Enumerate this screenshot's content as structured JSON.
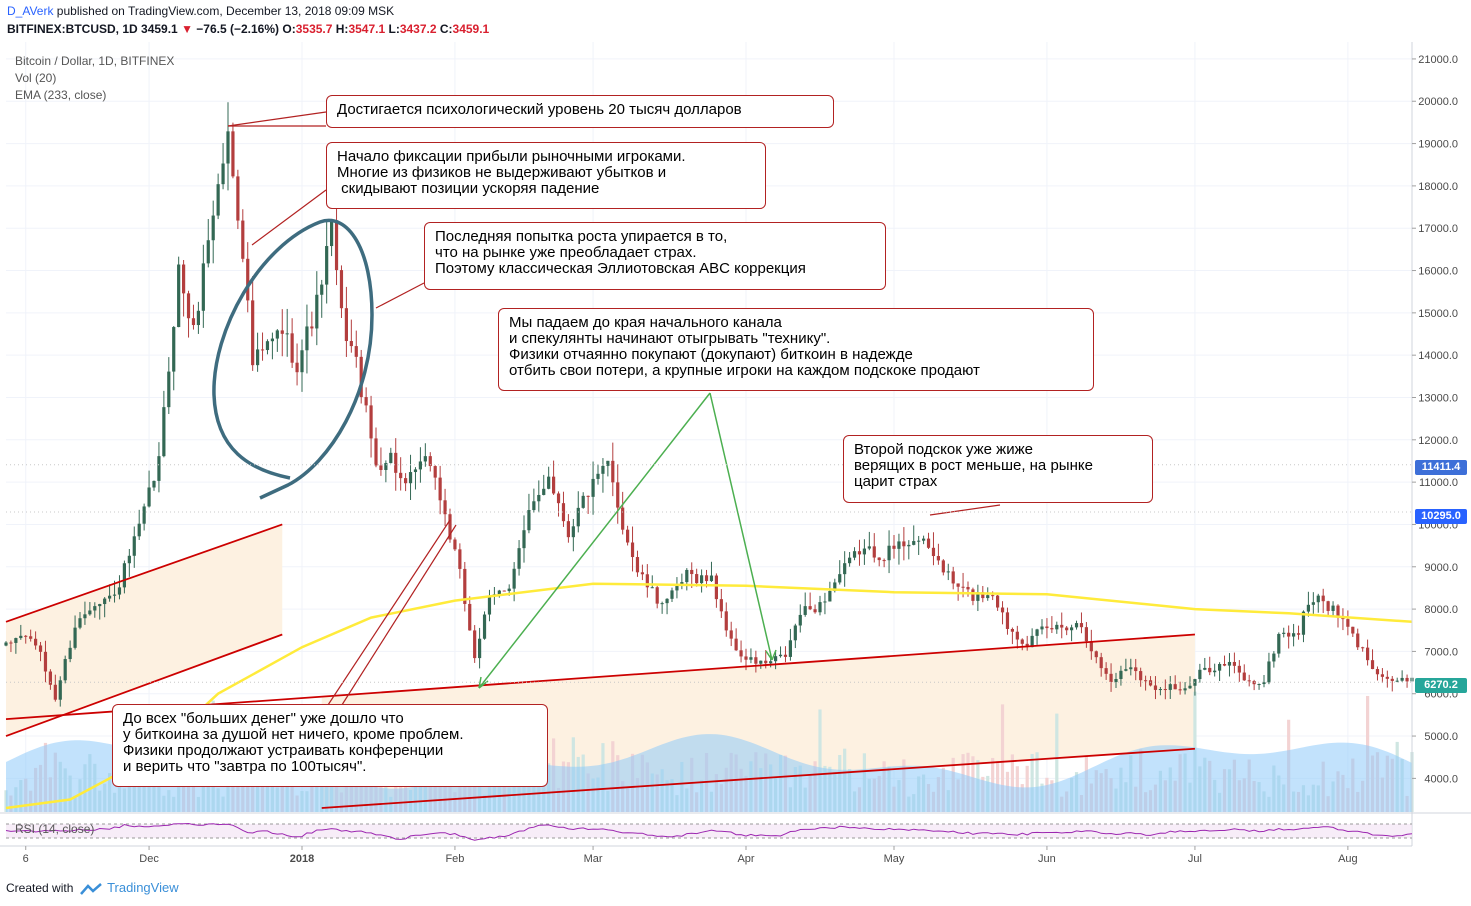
{
  "header": {
    "user": "D_AVerk",
    "published": " published on TradingView.com, December 13, 2018 09:09 MSK",
    "symbol": "BITFINEX:BTCUSD, 1D",
    "last": "3459.1",
    "change": "−76.5 (−2.16%)",
    "o_label": "O:",
    "o": "3535.7",
    "h_label": "H:",
    "h": "3547.1",
    "l_label": "L:",
    "l": "3437.2",
    "c_label": "C:",
    "c": "3459.1"
  },
  "legend": {
    "series": "Bitcoin / Dollar, 1D, BITFINEX",
    "volume": "Vol (20)",
    "ema": "EMA (233, close)",
    "rsi": "RSI (14, close)"
  },
  "annotations": [
    "Достигается психологический уровень 20 тысяч долларов",
    "Начало фиксации прибыли рыночными игроками.\nМногие из физиков не выдерживают убытков и\n скидывают позиции ускоряя падение",
    "Последняя попытка роста упирается в то,\nчто на рынке уже преобладает страх.\nПоэтому классическая Эллиотовская ABC коррекция",
    "Мы падаем до края начального канала\nи спекулянты начинают отыгрывать \"технику\".\nФизики отчаянно покупают (докупают) биткоин в надежде\nотбить свои потери, а крупные игроки на каждом подскоке продают",
    "Второй подскок уже жиже\nверящих в рост меньше, на рынке\nцарит страх",
    "До всех \"больших денег\" уже дошло что\nу биткоина за душой нет ничего, кроме проблем.\nФизики продолжают устраивать конференции\nи верить что \"завтра по 100тысяч\"."
  ],
  "price_tags": [
    "11411.4",
    "10295.0",
    "6270.2"
  ],
  "footer": {
    "created": "Created with",
    "brand": "TradingView"
  },
  "colors": {
    "up": "#336854",
    "down": "#b33e3e",
    "ema": "#ffeb3b",
    "channel": "#cc0000",
    "volume": "#90caf9",
    "rsi": "#9c27b0",
    "annotation_border": "#b22222"
  },
  "chart_data": {
    "type": "candlestick",
    "title": "Bitcoin / Dollar, 1D, BITFINEX",
    "y_axis": {
      "ticks": [
        4000,
        5000,
        6000,
        7000,
        8000,
        9000,
        10000,
        11000,
        12000,
        13000,
        14000,
        15000,
        16000,
        17000,
        18000,
        19000,
        20000,
        21000
      ],
      "ylim": [
        3300,
        21400
      ]
    },
    "x_axis": {
      "ticks": [
        "6",
        "Dec",
        "2018",
        "Feb",
        "Mar",
        "Apr",
        "May",
        "Jun",
        "Jul",
        "Aug"
      ],
      "tick_dates": [
        "2017-11-06",
        "2017-12-01",
        "2018-01-01",
        "2018-02-01",
        "2018-03-01",
        "2018-04-01",
        "2018-05-01",
        "2018-06-01",
        "2018-07-01",
        "2018-08-01"
      ],
      "xlim": [
        "2017-11-02",
        "2018-08-14"
      ]
    },
    "anchors": [
      [
        "2017-11-02",
        7100
      ],
      [
        "2017-11-05",
        7400
      ],
      [
        "2017-11-08",
        7200
      ],
      [
        "2017-11-12",
        5900
      ],
      [
        "2017-11-16",
        7600
      ],
      [
        "2017-11-20",
        8200
      ],
      [
        "2017-11-24",
        8300
      ],
      [
        "2017-11-29",
        9900
      ],
      [
        "2017-12-03",
        11500
      ],
      [
        "2017-12-07",
        16000
      ],
      [
        "2017-12-10",
        14500
      ],
      [
        "2017-12-13",
        16800
      ],
      [
        "2017-12-17",
        19200
      ],
      [
        "2017-12-20",
        16500
      ],
      [
        "2017-12-22",
        13800
      ],
      [
        "2017-12-25",
        14200
      ],
      [
        "2017-12-28",
        14600
      ],
      [
        "2017-12-31",
        13800
      ],
      [
        "2018-01-04",
        15200
      ],
      [
        "2018-01-07",
        17000
      ],
      [
        "2018-01-09",
        14900
      ],
      [
        "2018-01-12",
        13800
      ],
      [
        "2018-01-16",
        11400
      ],
      [
        "2018-01-19",
        11600
      ],
      [
        "2018-01-22",
        10800
      ],
      [
        "2018-01-24",
        11300
      ],
      [
        "2018-01-27",
        11500
      ],
      [
        "2018-01-30",
        10200
      ],
      [
        "2018-02-02",
        8800
      ],
      [
        "2018-02-05",
        6900
      ],
      [
        "2018-02-08",
        8200
      ],
      [
        "2018-02-12",
        8600
      ],
      [
        "2018-02-16",
        10200
      ],
      [
        "2018-02-20",
        11200
      ],
      [
        "2018-02-24",
        9800
      ],
      [
        "2018-02-27",
        10600
      ],
      [
        "2018-03-04",
        11400
      ],
      [
        "2018-03-07",
        10000
      ],
      [
        "2018-03-10",
        8900
      ],
      [
        "2018-03-14",
        8200
      ],
      [
        "2018-03-17",
        8300
      ],
      [
        "2018-03-20",
        8800
      ],
      [
        "2018-03-25",
        8700
      ],
      [
        "2018-03-29",
        7200
      ],
      [
        "2018-04-01",
        6800
      ],
      [
        "2018-04-05",
        6700
      ],
      [
        "2018-04-09",
        6900
      ],
      [
        "2018-04-12",
        7900
      ],
      [
        "2018-04-16",
        8100
      ],
      [
        "2018-04-20",
        8800
      ],
      [
        "2018-04-24",
        9400
      ],
      [
        "2018-04-29",
        9300
      ],
      [
        "2018-05-05",
        9700
      ],
      [
        "2018-05-09",
        9300
      ],
      [
        "2018-05-13",
        8600
      ],
      [
        "2018-05-17",
        8300
      ],
      [
        "2018-05-21",
        8400
      ],
      [
        "2018-05-24",
        7600
      ],
      [
        "2018-05-28",
        7200
      ],
      [
        "2018-05-31",
        7500
      ],
      [
        "2018-06-04",
        7600
      ],
      [
        "2018-06-08",
        7650
      ],
      [
        "2018-06-11",
        6800
      ],
      [
        "2018-06-14",
        6300
      ],
      [
        "2018-06-18",
        6700
      ],
      [
        "2018-06-22",
        6150
      ],
      [
        "2018-06-26",
        6200
      ],
      [
        "2018-06-29",
        6050
      ],
      [
        "2018-07-03",
        6600
      ],
      [
        "2018-07-08",
        6700
      ],
      [
        "2018-07-12",
        6250
      ],
      [
        "2018-07-15",
        6300
      ],
      [
        "2018-07-18",
        7400
      ],
      [
        "2018-07-22",
        7450
      ],
      [
        "2018-07-24",
        8200
      ],
      [
        "2018-07-27",
        8200
      ],
      [
        "2018-07-31",
        7700
      ],
      [
        "2018-08-04",
        7000
      ],
      [
        "2018-08-08",
        6400
      ],
      [
        "2018-08-11",
        6300
      ],
      [
        "2018-08-14",
        6270
      ]
    ],
    "ema_233": [
      [
        "2017-11-02",
        3300
      ],
      [
        "2017-11-15",
        3500
      ],
      [
        "2017-12-01",
        4500
      ],
      [
        "2017-12-15",
        6000
      ],
      [
        "2018-01-01",
        7100
      ],
      [
        "2018-01-15",
        7800
      ],
      [
        "2018-02-01",
        8200
      ],
      [
        "2018-03-01",
        8600
      ],
      [
        "2018-04-01",
        8550
      ],
      [
        "2018-05-01",
        8400
      ],
      [
        "2018-06-01",
        8350
      ],
      [
        "2018-07-01",
        8000
      ],
      [
        "2018-07-20",
        7900
      ],
      [
        "2018-08-14",
        7700
      ]
    ],
    "channel_lines": [
      {
        "from": [
          "2017-11-02",
          7700
        ],
        "to": [
          "2017-12-28",
          10000
        ]
      },
      {
        "from": [
          "2017-11-02",
          5000
        ],
        "to": [
          "2017-12-28",
          7400
        ]
      },
      {
        "from": [
          "2017-11-02",
          5400
        ],
        "to": [
          "2018-07-01",
          7400
        ]
      },
      {
        "from": [
          "2018-01-05",
          3300
        ],
        "to": [
          "2018-07-01",
          4700
        ]
      }
    ],
    "marked_prices": [
      11411.4,
      10295.0,
      6270.2
    ],
    "rsi_period": 14,
    "volume_period": 20
  }
}
